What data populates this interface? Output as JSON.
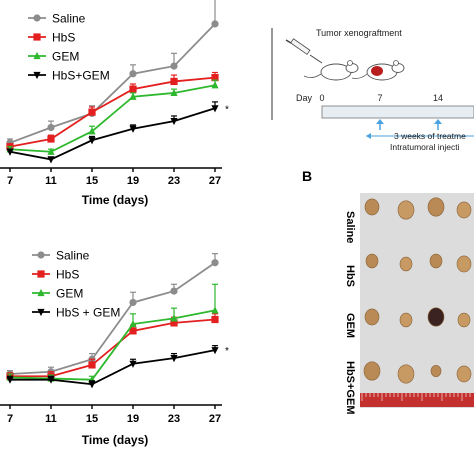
{
  "colors": {
    "saline": "#8c8c8c",
    "hbs": "#e31f1f",
    "gem": "#2db82d",
    "hbs_gem": "#000000",
    "timeline_bar": "#e6eef4",
    "arrow": "#4aa3e0",
    "tumor": "#b81e1e",
    "photo_bg": "#dcdcdc",
    "ruler": "#c4302e"
  },
  "chart_data": [
    {
      "type": "line",
      "xlabel": "Time (days)",
      "ylabel": "",
      "x": [
        7,
        11,
        15,
        19,
        23,
        27
      ],
      "legend_placement": "top-left",
      "series": [
        {
          "name": "Saline",
          "key": "saline",
          "marker": "circle",
          "values": [
            3,
            15,
            26,
            57,
            63,
            96
          ],
          "err": [
            3,
            5,
            6,
            7,
            10,
            35
          ]
        },
        {
          "name": "HbS",
          "key": "hbs",
          "marker": "square",
          "values": [
            0,
            6,
            27,
            45,
            51,
            54
          ],
          "err": [
            2,
            3,
            4,
            4,
            5,
            4
          ]
        },
        {
          "name": "GEM",
          "key": "gem",
          "marker": "triangle-up",
          "values": [
            -2,
            -4,
            12,
            39,
            42,
            48
          ],
          "err": [
            2,
            2,
            4,
            3,
            3,
            4
          ]
        },
        {
          "name": "HbS+GEM",
          "key": "hbs_gem",
          "marker": "triangle-down",
          "values": [
            -4,
            -10,
            5,
            14,
            20,
            30
          ],
          "err": [
            2,
            2,
            3,
            3,
            4,
            5
          ]
        }
      ],
      "annotation": "*",
      "ylim": [
        -12,
        110
      ]
    },
    {
      "type": "line",
      "xlabel": "Time (days)",
      "ylabel": "",
      "x": [
        7,
        11,
        15,
        19,
        23,
        27
      ],
      "legend_placement": "top-left",
      "series": [
        {
          "name": "Saline",
          "key": "saline",
          "marker": "circle",
          "values": [
            22,
            24,
            35,
            85,
            95,
            120
          ],
          "err": [
            3,
            4,
            5,
            9,
            6,
            8
          ]
        },
        {
          "name": "HbS",
          "key": "hbs",
          "marker": "square",
          "values": [
            20,
            20,
            30,
            60,
            67,
            70
          ],
          "err": [
            3,
            4,
            5,
            5,
            5,
            5
          ]
        },
        {
          "name": "GEM",
          "key": "gem",
          "marker": "triangle-up",
          "values": [
            19,
            18,
            17,
            66,
            71,
            78
          ],
          "err": [
            3,
            3,
            3,
            9,
            9,
            23
          ]
        },
        {
          "name": "HbS + GEM",
          "key": "hbs_gem",
          "marker": "triangle-down",
          "values": [
            17,
            17,
            13,
            31,
            36,
            43
          ],
          "err": [
            3,
            3,
            3,
            4,
            4,
            4
          ]
        }
      ],
      "annotation": "*",
      "ylim": [
        0,
        140
      ]
    }
  ],
  "timeline": {
    "label": "Tumor xenograftment",
    "day_label": "Day",
    "days": [
      "0",
      "7",
      "14"
    ],
    "note_line1": "3 weeks of treatme",
    "note_line2": "Intratumoral injecti"
  },
  "photo": {
    "panel_label": "B",
    "groups": [
      "Saline",
      "HbS",
      "GEM",
      "HbS+GEM"
    ]
  }
}
